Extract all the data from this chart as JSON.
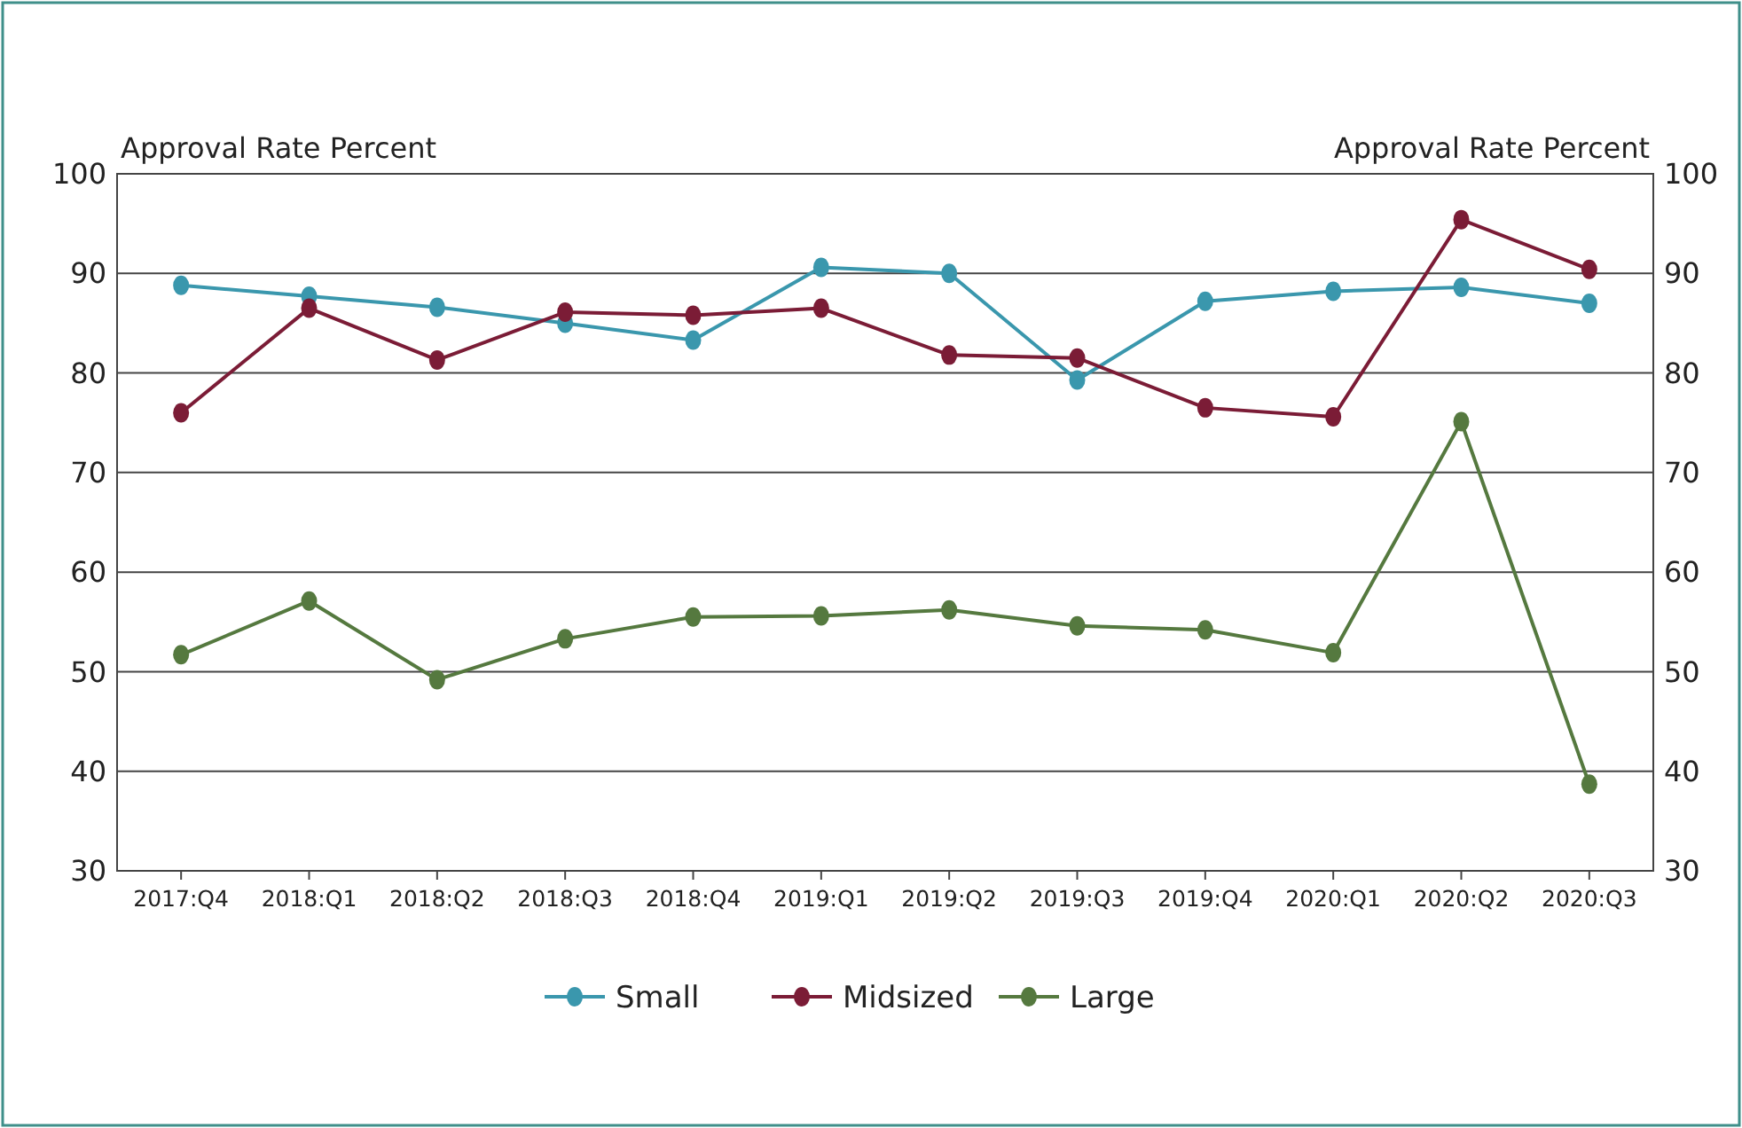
{
  "chart_data": {
    "type": "line",
    "ylabel": "Approval Rate Percent",
    "y2label": "Approval Rate Percent",
    "categories": [
      "2017:Q4",
      "2018:Q1",
      "2018:Q2",
      "2018:Q3",
      "2018:Q4",
      "2019:Q1",
      "2019:Q2",
      "2019:Q3",
      "2019:Q4",
      "2020:Q1",
      "2020:Q2",
      "2020:Q3"
    ],
    "series": [
      {
        "name": "Small",
        "color": "#3a97ad",
        "values": [
          88.8,
          87.7,
          86.6,
          85.0,
          83.3,
          90.6,
          90.0,
          79.3,
          87.2,
          88.2,
          88.6,
          87.0
        ]
      },
      {
        "name": "Midsized",
        "color": "#7b1c36",
        "values": [
          76.0,
          86.5,
          81.3,
          86.1,
          85.8,
          86.5,
          81.8,
          81.5,
          76.5,
          75.6,
          95.4,
          90.4
        ]
      },
      {
        "name": "Large",
        "color": "#55793f",
        "values": [
          51.7,
          57.1,
          49.2,
          53.3,
          55.5,
          55.6,
          56.2,
          54.6,
          54.2,
          51.9,
          75.1,
          38.7
        ]
      }
    ],
    "ylim": [
      30,
      100
    ],
    "yticks": [
      30,
      40,
      50,
      60,
      70,
      80,
      90,
      100
    ],
    "y2lim": [
      30,
      100
    ],
    "y2ticks": [
      30,
      40,
      50,
      60,
      70,
      80,
      90,
      100
    ],
    "grid": "y",
    "legend": "bottom",
    "marker": "circle",
    "line_style": "solid"
  }
}
